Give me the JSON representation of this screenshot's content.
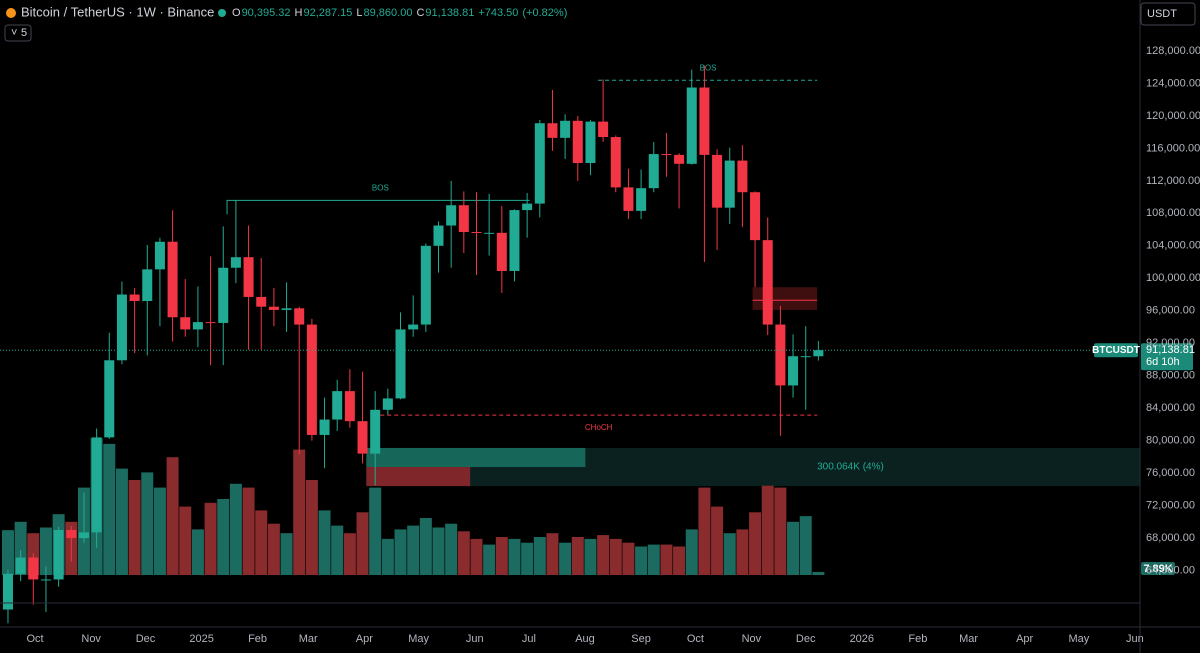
{
  "chart_data": {
    "type": "candlestick",
    "header": {
      "symbol": "Bitcoin / TetherUS · 1W · Binance",
      "indicator_count": "5",
      "currency": "USDT",
      "o_tag": "O",
      "h_tag": "H",
      "l_tag": "L",
      "c_tag": "C",
      "open": {
        "value": 90395.32,
        "label": "90,395.32"
      },
      "high": {
        "value": 92287.15,
        "label": "92,287.15"
      },
      "low": {
        "value": 89860.0,
        "label": "89,860.00"
      },
      "close": {
        "value": 91138.81,
        "label": "91,138.81"
      },
      "change": {
        "value": 743.5,
        "label": "+743.50"
      },
      "change_pct": {
        "value": 0.82,
        "label": "(+0.82%)"
      }
    },
    "up_color": "#22ab94",
    "down_color": "#f23645",
    "volume_up_color": "#1b6b60",
    "volume_down_color": "#8a2b2d",
    "x": [
      0,
      1,
      2,
      3,
      4,
      5,
      6,
      7,
      8,
      9,
      10,
      11,
      12,
      13,
      14,
      15,
      16,
      17,
      18,
      19,
      20,
      21,
      22,
      23,
      24,
      25,
      26,
      27,
      28,
      29,
      30,
      31,
      32,
      33,
      34,
      35,
      36,
      37,
      38,
      39,
      40,
      41,
      42,
      43,
      44,
      45,
      46,
      47,
      48,
      49,
      50,
      51,
      52,
      53,
      54,
      55,
      56,
      57,
      58,
      59,
      60,
      61,
      62,
      63,
      64
    ],
    "open": [
      59200,
      63600,
      65600,
      62900,
      62900,
      69000,
      68000,
      68700,
      80400,
      89900,
      98000,
      97200,
      101100,
      104500,
      95200,
      93700,
      94600,
      94500,
      101300,
      102600,
      97700,
      96500,
      96100,
      96300,
      94300,
      80700,
      82600,
      86100,
      82400,
      78400,
      83800,
      85200,
      93700,
      94300,
      104000,
      106500,
      109000,
      105700,
      105600,
      105600,
      100900,
      108400,
      109200,
      119100,
      117300,
      119400,
      114200,
      119300,
      117400,
      111200,
      108300,
      111100,
      115300,
      115200,
      114100,
      123500,
      115200,
      108700,
      114500,
      110600,
      104700,
      94300,
      86800,
      90400,
      90395.32
    ],
    "high": [
      64100,
      66500,
      66100,
      64500,
      69400,
      69500,
      73600,
      81500,
      93300,
      99600,
      98800,
      104100,
      105000,
      108400,
      99900,
      99000,
      102700,
      106400,
      109600,
      106500,
      102500,
      98800,
      99500,
      96500,
      95000,
      85300,
      87500,
      88800,
      88500,
      86100,
      86400,
      95800,
      97900,
      104300,
      107000,
      112000,
      110700,
      110600,
      110400,
      108900,
      108500,
      110500,
      119500,
      123200,
      120200,
      120000,
      119500,
      124500,
      117600,
      113500,
      113400,
      116800,
      117900,
      115400,
      125700,
      126200,
      115900,
      116100,
      116400,
      110700,
      107500,
      96600,
      93100,
      94100,
      92287.15
    ],
    "low": [
      57500,
      62700,
      59800,
      58900,
      62000,
      65100,
      67400,
      66800,
      80200,
      89400,
      90800,
      90500,
      94100,
      92200,
      92800,
      91500,
      89300,
      89300,
      99400,
      91200,
      91200,
      94100,
      93400,
      78300,
      80000,
      76600,
      81200,
      81600,
      77200,
      74500,
      83200,
      85100,
      92800,
      93400,
      100700,
      101300,
      103100,
      100400,
      102800,
      98200,
      99600,
      105000,
      107500,
      115700,
      114700,
      112000,
      112700,
      116800,
      110600,
      107300,
      107300,
      110600,
      112500,
      108600,
      114000,
      102000,
      103500,
      106700,
      106300,
      98900,
      93000,
      80600,
      85300,
      83800,
      89860
    ],
    "close": [
      63600,
      65600,
      62900,
      62900,
      69000,
      68000,
      68700,
      80400,
      89900,
      98000,
      97200,
      101100,
      104500,
      95200,
      93700,
      94600,
      94500,
      101300,
      102600,
      97700,
      96500,
      96100,
      96300,
      94300,
      80700,
      82600,
      86100,
      82400,
      78400,
      83800,
      85200,
      93700,
      94300,
      104000,
      106500,
      109000,
      105700,
      105600,
      105600,
      100900,
      108400,
      109200,
      119100,
      117300,
      119400,
      114200,
      119300,
      117400,
      111200,
      108300,
      111100,
      115300,
      115200,
      114100,
      123500,
      115200,
      108700,
      114500,
      110600,
      104700,
      94300,
      86800,
      90400,
      90400,
      91138.81
    ],
    "volume": {
      "values": [
        118,
        140,
        110,
        125,
        160,
        140,
        230,
        360,
        345,
        280,
        250,
        270,
        230,
        310,
        180,
        120,
        190,
        200,
        240,
        230,
        170,
        135,
        110,
        330,
        250,
        170,
        130,
        110,
        165,
        230,
        95,
        120,
        130,
        150,
        125,
        135,
        115,
        95,
        80,
        100,
        95,
        85,
        100,
        110,
        85,
        100,
        95,
        105,
        95,
        85,
        75,
        80,
        80,
        75,
        120,
        230,
        180,
        110,
        120,
        165,
        235,
        230,
        140,
        155,
        7.89
      ],
      "last_label": "7.89K"
    },
    "xlim": [
      -0.63,
      89.4
    ],
    "xticks": [
      {
        "value": 2.14,
        "label": "Oct"
      },
      {
        "value": 6.57,
        "label": "Nov"
      },
      {
        "value": 10.86,
        "label": "Dec"
      },
      {
        "value": 15.29,
        "label": "2025"
      },
      {
        "value": 19.71,
        "label": "Feb"
      },
      {
        "value": 23.71,
        "label": "Mar"
      },
      {
        "value": 28.14,
        "label": "Apr"
      },
      {
        "value": 32.43,
        "label": "May"
      },
      {
        "value": 36.86,
        "label": "Jun"
      },
      {
        "value": 41.14,
        "label": "Jul"
      },
      {
        "value": 45.57,
        "label": "Aug"
      },
      {
        "value": 50,
        "label": "Sep"
      },
      {
        "value": 54.29,
        "label": "Oct"
      },
      {
        "value": 58.71,
        "label": "Nov"
      },
      {
        "value": 63,
        "label": "Dec"
      },
      {
        "value": 67.43,
        "label": "2026"
      },
      {
        "value": 71.86,
        "label": "Feb"
      },
      {
        "value": 75.86,
        "label": "Mar"
      },
      {
        "value": 80.29,
        "label": "Apr"
      },
      {
        "value": 84.57,
        "label": "May"
      },
      {
        "value": 89,
        "label": "Jun"
      }
    ],
    "ylim": [
      63450,
      134280
    ],
    "yticks": [
      {
        "value": 64000,
        "label": "64,000.00"
      },
      {
        "value": 68000,
        "label": "68,000.00"
      },
      {
        "value": 72000,
        "label": "72,000.00"
      },
      {
        "value": 76000,
        "label": "76,000.00"
      },
      {
        "value": 80000,
        "label": "80,000.00"
      },
      {
        "value": 84000,
        "label": "84,000.00"
      },
      {
        "value": 88000,
        "label": "88,000.00"
      },
      {
        "value": 92000,
        "label": "92,000.00"
      },
      {
        "value": 96000,
        "label": "96,000.00"
      },
      {
        "value": 100000,
        "label": "100,000.00"
      },
      {
        "value": 104000,
        "label": "104,000.00"
      },
      {
        "value": 108000,
        "label": "108,000.00"
      },
      {
        "value": 112000,
        "label": "112,000.00"
      },
      {
        "value": 116000,
        "label": "116,000.00"
      },
      {
        "value": 120000,
        "label": "120,000.00"
      },
      {
        "value": 124000,
        "label": "124,000.00"
      },
      {
        "value": 128000,
        "label": "128,000.00"
      }
    ],
    "last_price": {
      "value": 91138.81,
      "label": "91,138.81",
      "ticker": "BTCUSDT",
      "countdown": "6d 10h"
    },
    "bos": [
      {
        "text": "BOS",
        "level": 109600,
        "x1": 17.3,
        "x2": 41.2
      },
      {
        "text": "BOS",
        "level": 124400,
        "x1": 46.6,
        "x2": 63.9
      }
    ],
    "choch": {
      "text": "CHoCH",
      "level": 83150,
      "x1": 29.4,
      "x2": 63.9
    },
    "order_block": {
      "top": 98900,
      "bottom": 96100,
      "mid": 97300,
      "x1": 58.8,
      "x2": 63.9
    },
    "volume_profile": {
      "top": 79100,
      "bottom": 74400,
      "mid": 76750,
      "x1": 28.3,
      "up_x2": 45.6,
      "down_x2": 36.5,
      "text": "300.064K (4%)"
    }
  }
}
